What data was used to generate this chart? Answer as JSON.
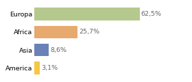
{
  "categories": [
    "America",
    "Asia",
    "Africa",
    "Europa"
  ],
  "values": [
    3.1,
    8.6,
    25.7,
    62.5
  ],
  "labels": [
    "3,1%",
    "8,6%",
    "25,7%",
    "62,5%"
  ],
  "bar_colors": [
    "#f5c842",
    "#6b82b8",
    "#e8a96e",
    "#b5c98e"
  ],
  "xlim": [
    0,
    80
  ],
  "background_color": "#ffffff",
  "bar_height": 0.72,
  "label_fontsize": 6.8,
  "tick_fontsize": 6.8,
  "label_color": "#666666",
  "grid_color": "#dddddd"
}
